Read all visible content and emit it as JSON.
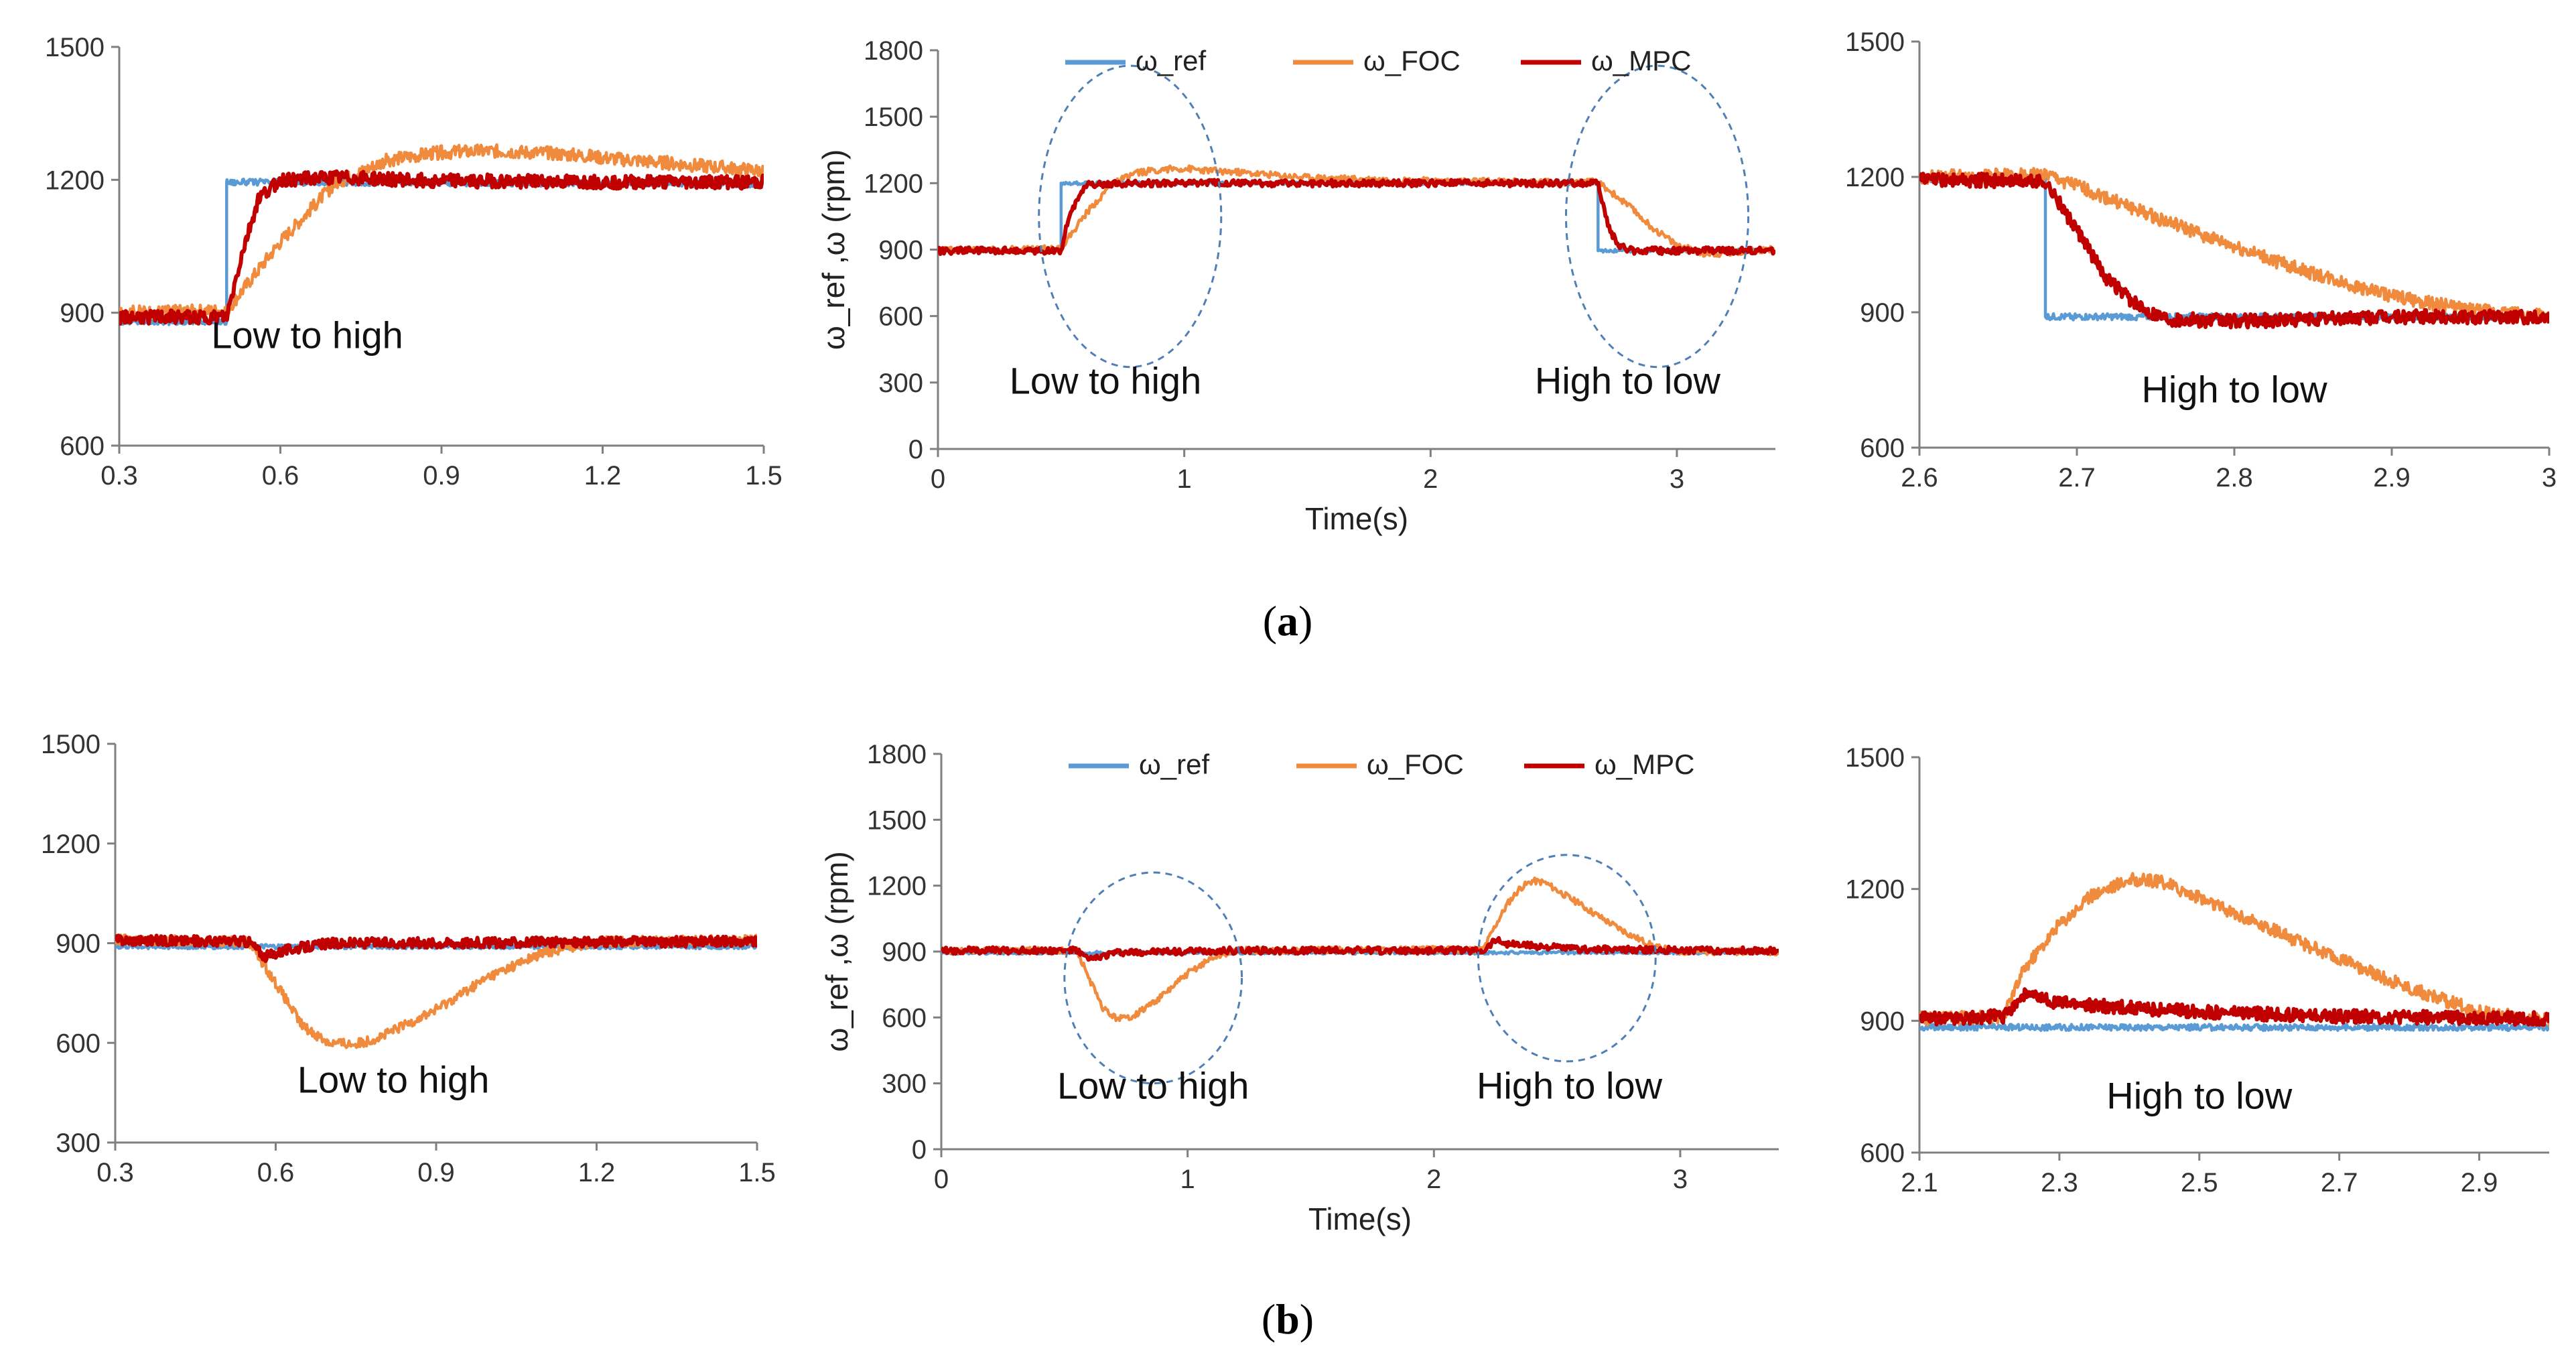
{
  "colors": {
    "ref": "#5b9bd5",
    "foc": "#f08a3c",
    "mpc": "#c00000",
    "ellipse": "#4f7fb5",
    "axis": "#7f7f7f"
  },
  "captions": [
    {
      "open": "(",
      "letter": "a",
      "close": ")"
    },
    {
      "open": "(",
      "letter": "b",
      "close": ")"
    }
  ],
  "chart_data": [
    {
      "id": "a-left",
      "type": "line",
      "xlim": [
        0.3,
        1.5
      ],
      "ylim": [
        600,
        1500
      ],
      "xticks": [
        "0.3",
        "0.6",
        "0.9",
        "1.2",
        "1.5"
      ],
      "yticks": [
        "600",
        "900",
        "1200",
        "1500"
      ],
      "annotations": [
        {
          "text": "Low to high",
          "x": 0.65,
          "y": 820
        }
      ],
      "series": [
        {
          "key": "ref",
          "x": [
            0.3,
            0.5,
            0.5,
            1.5
          ],
          "y": [
            880,
            880,
            1195,
            1190
          ]
        },
        {
          "key": "foc",
          "x": [
            0.3,
            0.5,
            0.6,
            0.7,
            0.8,
            0.9,
            1.0,
            1.1,
            1.2,
            1.3,
            1.4,
            1.5
          ],
          "y": [
            900,
            905,
            1060,
            1190,
            1245,
            1262,
            1265,
            1260,
            1250,
            1240,
            1230,
            1220
          ]
        },
        {
          "key": "mpc",
          "x": [
            0.3,
            0.5,
            0.53,
            0.56,
            0.6,
            0.7,
            0.9,
            1.2,
            1.5
          ],
          "y": [
            890,
            890,
            1040,
            1160,
            1200,
            1205,
            1198,
            1195,
            1195
          ]
        }
      ]
    },
    {
      "id": "a-mid",
      "type": "line",
      "xlim": [
        0,
        3.4
      ],
      "ylim": [
        0,
        1800
      ],
      "xticks": [
        "0",
        "1",
        "2",
        "3"
      ],
      "yticks": [
        "0",
        "300",
        "600",
        "900",
        "1200",
        "1500",
        "1800"
      ],
      "xlabel": "Time(s)",
      "ylabel": "ω_ref ,ω (rpm)",
      "legend": {
        "position": "top",
        "items": [
          {
            "key": "ref",
            "name": "ω_ref"
          },
          {
            "key": "foc",
            "name": "ω_FOC"
          },
          {
            "key": "mpc",
            "name": "ω_MPC"
          }
        ]
      },
      "annotations": [
        {
          "text": "Low to high",
          "x": 0.68,
          "y": 250
        },
        {
          "text": "High to low",
          "x": 2.8,
          "y": 250
        }
      ],
      "highlights": [
        {
          "cx": 0.78,
          "cy": 1050,
          "rx": 0.37,
          "ry": 680
        },
        {
          "cx": 2.92,
          "cy": 1050,
          "rx": 0.37,
          "ry": 680
        }
      ],
      "series": [
        {
          "key": "ref",
          "x": [
            0,
            0.5,
            0.5,
            2.68,
            2.68,
            3.4
          ],
          "y": [
            895,
            895,
            1200,
            1200,
            895,
            895
          ]
        },
        {
          "key": "foc",
          "x": [
            0,
            0.5,
            0.6,
            0.7,
            0.8,
            0.9,
            1.0,
            1.2,
            1.5,
            2.0,
            2.5,
            2.68,
            2.8,
            2.9,
            3.0,
            3.1,
            3.2,
            3.3,
            3.4
          ],
          "y": [
            900,
            905,
            1060,
            1190,
            1245,
            1262,
            1265,
            1250,
            1225,
            1210,
            1205,
            1205,
            1100,
            1000,
            920,
            885,
            880,
            895,
            900
          ]
        },
        {
          "key": "mpc",
          "x": [
            0,
            0.5,
            0.53,
            0.6,
            0.8,
            2.68,
            2.72,
            2.76,
            2.82,
            3.4
          ],
          "y": [
            895,
            895,
            1050,
            1195,
            1200,
            1200,
            1010,
            920,
            895,
            895
          ]
        }
      ]
    },
    {
      "id": "a-right",
      "type": "line",
      "xlim": [
        2.6,
        3.0
      ],
      "ylim": [
        600,
        1500
      ],
      "xticks": [
        "2.6",
        "2.7",
        "2.8",
        "2.9",
        "3"
      ],
      "yticks": [
        "600",
        "900",
        "1200",
        "1500"
      ],
      "annotations": [
        {
          "text": "High to low",
          "x": 2.8,
          "y": 700
        }
      ],
      "series": [
        {
          "key": "ref",
          "x": [
            2.6,
            2.68,
            2.68,
            3.0
          ],
          "y": [
            1195,
            1195,
            890,
            890
          ]
        },
        {
          "key": "foc",
          "x": [
            2.6,
            2.68,
            2.7,
            2.75,
            2.8,
            2.85,
            2.9,
            2.95,
            3.0
          ],
          "y": [
            1200,
            1205,
            1180,
            1110,
            1045,
            985,
            935,
            905,
            890
          ]
        },
        {
          "key": "mpc",
          "x": [
            2.6,
            2.68,
            2.7,
            2.72,
            2.74,
            2.76,
            2.8,
            2.9,
            3.0
          ],
          "y": [
            1195,
            1190,
            1080,
            970,
            910,
            885,
            880,
            890,
            890
          ]
        }
      ]
    },
    {
      "id": "b-left",
      "type": "line",
      "xlim": [
        0.3,
        1.5
      ],
      "ylim": [
        300,
        1500
      ],
      "xticks": [
        "0.3",
        "0.6",
        "0.9",
        "1.2",
        "1.5"
      ],
      "yticks": [
        "300",
        "600",
        "900",
        "1200",
        "1500"
      ],
      "annotations": [
        {
          "text": "Low to high",
          "x": 0.82,
          "y": 450
        }
      ],
      "series": [
        {
          "key": "ref",
          "x": [
            0.3,
            1.5
          ],
          "y": [
            890,
            890
          ]
        },
        {
          "key": "foc",
          "x": [
            0.3,
            0.55,
            0.6,
            0.65,
            0.7,
            0.75,
            0.8,
            0.9,
            1.0,
            1.1,
            1.2,
            1.5
          ],
          "y": [
            910,
            905,
            780,
            650,
            600,
            595,
            620,
            700,
            800,
            870,
            905,
            910
          ]
        },
        {
          "key": "mpc",
          "x": [
            0.3,
            0.55,
            0.58,
            0.62,
            0.7,
            1.5
          ],
          "y": [
            910,
            905,
            860,
            880,
            900,
            905
          ]
        }
      ]
    },
    {
      "id": "b-mid",
      "type": "line",
      "xlim": [
        0,
        3.4
      ],
      "ylim": [
        0,
        1800
      ],
      "xticks": [
        "0",
        "1",
        "2",
        "3"
      ],
      "yticks": [
        "0",
        "300",
        "600",
        "900",
        "1200",
        "1500",
        "1800"
      ],
      "xlabel": "Time(s)",
      "ylabel": "ω_ref ,ω (rpm)",
      "legend": {
        "position": "top",
        "items": [
          {
            "key": "ref",
            "name": "ω_ref"
          },
          {
            "key": "foc",
            "name": "ω_FOC"
          },
          {
            "key": "mpc",
            "name": "ω_MPC"
          }
        ]
      },
      "annotations": [
        {
          "text": "Low to high",
          "x": 0.86,
          "y": 230
        },
        {
          "text": "High to low",
          "x": 2.55,
          "y": 230
        }
      ],
      "highlights": [
        {
          "cx": 0.86,
          "cy": 780,
          "rx": 0.36,
          "ry": 480
        },
        {
          "cx": 2.54,
          "cy": 870,
          "rx": 0.36,
          "ry": 470
        }
      ],
      "series": [
        {
          "key": "ref",
          "x": [
            0,
            3.2
          ],
          "y": [
            895,
            895
          ]
        },
        {
          "key": "foc",
          "x": [
            0,
            0.55,
            0.6,
            0.65,
            0.7,
            0.75,
            0.8,
            0.9,
            1.0,
            1.1,
            1.2,
            2.2,
            2.25,
            2.3,
            2.35,
            2.4,
            2.45,
            2.5,
            2.6,
            2.7,
            2.8,
            2.9,
            3.0,
            3.2
          ],
          "y": [
            905,
            905,
            780,
            650,
            600,
            595,
            620,
            700,
            800,
            870,
            905,
            910,
            1020,
            1120,
            1190,
            1222,
            1215,
            1180,
            1110,
            1040,
            975,
            920,
            900,
            900
          ]
        },
        {
          "key": "mpc",
          "x": [
            0,
            0.55,
            0.6,
            0.7,
            1.2,
            2.2,
            2.25,
            2.3,
            2.6,
            3.2
          ],
          "y": [
            905,
            905,
            860,
            895,
            905,
            905,
            955,
            935,
            910,
            905
          ]
        }
      ]
    },
    {
      "id": "b-right",
      "type": "line",
      "xlim": [
        2.1,
        3.0
      ],
      "ylim": [
        600,
        1500
      ],
      "xticks": [
        "2.1",
        "2.3",
        "2.5",
        "2.7",
        "2.9"
      ],
      "yticks": [
        "600",
        "900",
        "1200",
        "1500"
      ],
      "annotations": [
        {
          "text": "High to low",
          "x": 2.5,
          "y": 700
        }
      ],
      "series": [
        {
          "key": "ref",
          "x": [
            2.1,
            3.0
          ],
          "y": [
            885,
            885
          ]
        },
        {
          "key": "foc",
          "x": [
            2.1,
            2.22,
            2.25,
            2.3,
            2.35,
            2.4,
            2.45,
            2.5,
            2.6,
            2.7,
            2.8,
            2.9,
            3.0
          ],
          "y": [
            905,
            910,
            1020,
            1120,
            1190,
            1222,
            1215,
            1180,
            1110,
            1040,
            975,
            920,
            900
          ]
        },
        {
          "key": "mpc",
          "x": [
            2.1,
            2.22,
            2.25,
            2.3,
            2.5,
            2.7,
            3.0
          ],
          "y": [
            905,
            910,
            960,
            940,
            920,
            910,
            905
          ]
        }
      ]
    }
  ]
}
